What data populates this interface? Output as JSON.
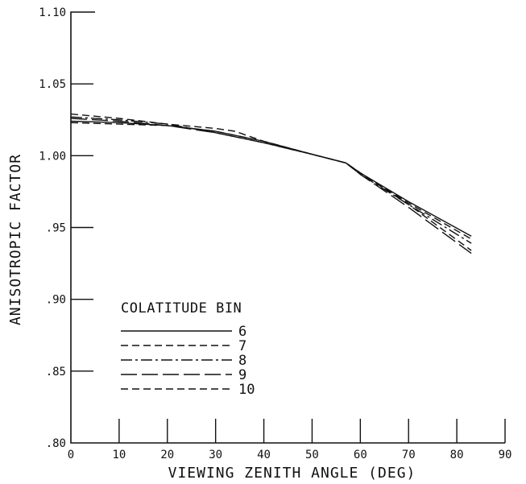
{
  "chart_data": {
    "type": "line",
    "title": "",
    "xlabel": "VIEWING ZENITH ANGLE (DEG)",
    "ylabel": "ANISOTROPIC FACTOR",
    "xlim": [
      0,
      90
    ],
    "ylim": [
      0.8,
      1.1
    ],
    "x_ticks": [
      0,
      10,
      20,
      30,
      40,
      50,
      60,
      70,
      80,
      90
    ],
    "x_tick_labels": [
      "0",
      "10",
      "20",
      "30",
      "40",
      "50",
      "60",
      "70",
      "80",
      "90"
    ],
    "y_ticks": [
      0.8,
      0.85,
      0.9,
      0.95,
      1.0,
      1.05,
      1.1
    ],
    "y_tick_labels": [
      ".80",
      ".85",
      ".90",
      ".95",
      "1.00",
      "1.05",
      "1.10"
    ],
    "grid": false,
    "legend": {
      "title": "COLATITUDE BIN",
      "placement": "bottom-left"
    },
    "series": [
      {
        "name": "6",
        "line_style": "solid",
        "x": [
          0,
          10,
          20,
          30,
          40,
          50,
          57,
          60,
          70,
          83
        ],
        "y": [
          1.024,
          1.023,
          1.021,
          1.017,
          1.01,
          1.001,
          0.995,
          0.988,
          0.968,
          0.944
        ]
      },
      {
        "name": "7",
        "line_style": "dashed",
        "x": [
          0,
          10,
          20,
          30,
          34,
          40,
          50,
          57,
          60,
          70,
          83
        ],
        "y": [
          1.029,
          1.026,
          1.022,
          1.019,
          1.017,
          1.01,
          1.001,
          0.995,
          0.988,
          0.966,
          0.934
        ]
      },
      {
        "name": "8",
        "line_style": "dash-dot",
        "x": [
          0,
          10,
          20,
          30,
          40,
          50,
          57,
          60,
          70,
          83
        ],
        "y": [
          1.027,
          1.025,
          1.022,
          1.016,
          1.009,
          1.001,
          0.995,
          0.987,
          0.966,
          0.939
        ]
      },
      {
        "name": "9",
        "line_style": "long-dash",
        "x": [
          0,
          10,
          20,
          30,
          40,
          50,
          57,
          60,
          70,
          83
        ],
        "y": [
          1.026,
          1.024,
          1.021,
          1.016,
          1.009,
          1.001,
          0.995,
          0.987,
          0.964,
          0.932
        ]
      },
      {
        "name": "10",
        "line_style": "dashed",
        "x": [
          0,
          10,
          20,
          30,
          40,
          50,
          57,
          60,
          70,
          83
        ],
        "y": [
          1.023,
          1.022,
          1.021,
          1.017,
          1.01,
          1.001,
          0.995,
          0.988,
          0.967,
          0.942
        ]
      }
    ]
  }
}
